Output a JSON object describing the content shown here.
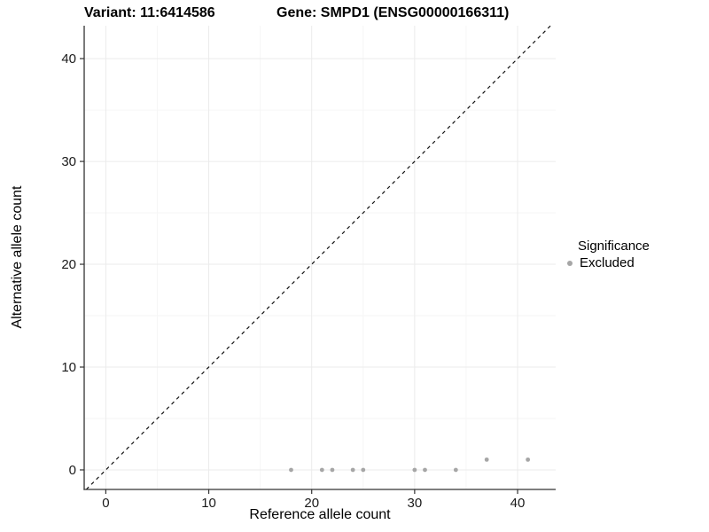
{
  "header": {
    "variant_title": "Variant: 11:6414586",
    "gene_title": "Gene: SMPD1 (ENSG00000166311)"
  },
  "legend": {
    "title": "Significance",
    "items": [
      {
        "label": "Excluded",
        "color": "#a6a6a6"
      }
    ]
  },
  "chart_data": {
    "type": "scatter",
    "title": "Variant: 11:6414586   Gene: SMPD1 (ENSG00000166311)",
    "xlabel": "Reference allele count",
    "ylabel": "Alternative allele count",
    "xlim": [
      -2.1,
      43.7
    ],
    "ylim": [
      -1.9,
      43.2
    ],
    "x_ticks": [
      0,
      10,
      20,
      30,
      40
    ],
    "y_ticks": [
      0,
      10,
      20,
      30,
      40
    ],
    "x_minor_ticks": [
      5,
      15,
      25,
      35
    ],
    "y_minor_ticks": [
      5,
      15,
      25,
      35
    ],
    "grid": true,
    "legend_position": "right",
    "series": [
      {
        "name": "Excluded",
        "color": "#a6a6a6",
        "points": [
          [
            18,
            0
          ],
          [
            21,
            0
          ],
          [
            22,
            0
          ],
          [
            24,
            0
          ],
          [
            25,
            0
          ],
          [
            30,
            0
          ],
          [
            31,
            0
          ],
          [
            34,
            0
          ],
          [
            37,
            1
          ],
          [
            41,
            1
          ]
        ]
      }
    ],
    "reference_line": {
      "style": "dashed",
      "slope": 1,
      "intercept": 0,
      "color": "#111111"
    }
  },
  "style_colors": {
    "major_grid": "#ebebeb",
    "minor_grid": "#f6f6f6",
    "axis_line": "#333333",
    "tick_label": "#1a1a1a",
    "point": "#a6a6a6"
  }
}
